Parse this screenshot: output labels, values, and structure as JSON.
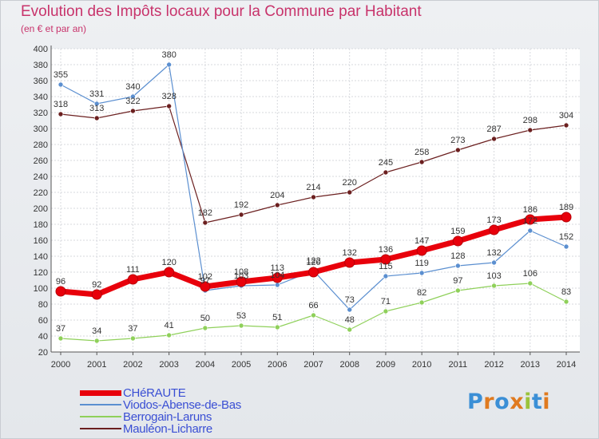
{
  "header": {
    "title": "Evolution des Impôts locaux pour la Commune par Habitant",
    "subtitle": "(en € et par an)"
  },
  "logo": {
    "text": "Proxiti",
    "colors": [
      "#3b8fd6",
      "#e07a1f",
      "#3b8fd6",
      "#e07a1f",
      "#9bc33b",
      "#3b8fd6",
      "#e07a1f"
    ]
  },
  "chart_data": {
    "type": "line",
    "title": "Evolution des Impôts locaux pour la Commune par Habitant",
    "subtitle": "(en € et par an)",
    "xlabel": "",
    "ylabel": "",
    "ylim": [
      20,
      400
    ],
    "yticks": [
      20,
      40,
      60,
      80,
      100,
      120,
      140,
      160,
      180,
      200,
      220,
      240,
      260,
      280,
      300,
      320,
      340,
      360,
      380,
      400
    ],
    "grid": true,
    "legend_position": "bottom-left",
    "x": [
      "2000",
      "2001",
      "2002",
      "2003",
      "2004",
      "2005",
      "2006",
      "2007",
      "2008",
      "2009",
      "2010",
      "2011",
      "2012",
      "2013",
      "2014"
    ],
    "series": [
      {
        "name": "CHéRAUTE",
        "color": "#e8000b",
        "values": [
          96,
          92,
          111,
          120,
          102,
          108,
          113,
          120,
          132,
          136,
          147,
          159,
          173,
          186,
          189
        ]
      },
      {
        "name": "Viodos-Abense-de-Bas",
        "color": "#5b8fd0",
        "values": [
          355,
          331,
          340,
          380,
          97,
          103,
          104,
          122,
          73,
          115,
          119,
          128,
          132,
          172,
          152
        ]
      },
      {
        "name": "Berrogain-Laruns",
        "color": "#8fd05a",
        "values": [
          37,
          34,
          37,
          41,
          50,
          53,
          51,
          66,
          48,
          71,
          82,
          97,
          103,
          106,
          83
        ]
      },
      {
        "name": "Mauléon-Licharre",
        "color": "#6b1f1f",
        "values": [
          318,
          313,
          322,
          328,
          182,
          192,
          204,
          214,
          220,
          245,
          258,
          273,
          287,
          298,
          304
        ]
      }
    ],
    "point_labels": {
      "CHéRAUTE": [
        "96",
        "92",
        "111",
        "120",
        "102",
        "108",
        "113",
        "120",
        "132",
        "136",
        "147",
        "159",
        "173",
        "186",
        "189"
      ],
      "Viodos-Abense-de-Bas": [
        "355",
        "331",
        "340",
        "380",
        "97",
        "103",
        "104",
        "122",
        "73",
        "115",
        "119",
        "128",
        "132",
        "172",
        "152"
      ],
      "Berrogain-Laruns": [
        "37",
        "34",
        "37",
        "41",
        "50",
        "53",
        "51",
        "66",
        "48",
        "71",
        "82",
        "97",
        "103",
        "106",
        "83"
      ],
      "Mauléon-Licharre": [
        "318",
        "313",
        "322",
        "328",
        "182",
        "192",
        "204",
        "214",
        "220",
        "245",
        "258",
        "273",
        "287",
        "298",
        "304"
      ]
    }
  }
}
